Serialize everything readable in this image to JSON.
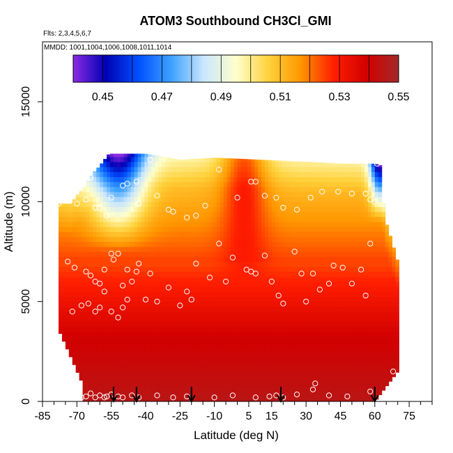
{
  "chart_data": {
    "type": "heatmap",
    "title": "ATOM3 Southbound CH3Cl_GMI",
    "flights_line": "Flts: 2,3,4,5,6,7",
    "mmdd_line": "MMDD: 1001,1004,1006,1008,1011,1014",
    "xlabel": "Latitude (deg N)",
    "ylabel": "Altitude (m)",
    "xlim": [
      -85,
      85
    ],
    "ylim": [
      0,
      18000
    ],
    "x_ticks": [
      -85,
      -70,
      -55,
      -40,
      -25,
      -10,
      5,
      15,
      30,
      45,
      60,
      75
    ],
    "x_minor_ticks": [
      -80,
      -75,
      -65,
      -60,
      -50,
      -45,
      -35,
      -30,
      -20,
      -15,
      -5,
      0,
      10,
      20,
      25,
      35,
      40,
      50,
      55,
      65,
      70,
      80,
      85
    ],
    "y_ticks": [
      0,
      5000,
      10000,
      15000
    ],
    "colorbar": {
      "min": 0.44,
      "max": 0.55,
      "ticks": [
        0.45,
        0.47,
        0.49,
        0.51,
        0.53,
        0.55
      ],
      "tick_labels": [
        "0.45",
        "0.47",
        "0.49",
        "0.51",
        "0.53",
        "0.55"
      ],
      "stops": [
        "#8a2be2",
        "#0000b4",
        "#0050ff",
        "#3ca0ff",
        "#c8e6ff",
        "#ffffcc",
        "#ffd23c",
        "#ff9600",
        "#ff1e00",
        "#d20000",
        "#a52828"
      ]
    },
    "curtain_top": [
      [
        -78,
        9900
      ],
      [
        -72,
        9900
      ],
      [
        -71,
        10200
      ],
      [
        -67,
        10700
      ],
      [
        -64,
        11300
      ],
      [
        -60,
        11800
      ],
      [
        -56,
        12400
      ],
      [
        -40,
        12400
      ],
      [
        -25,
        12100
      ],
      [
        -10,
        12200
      ],
      [
        10,
        12100
      ],
      [
        30,
        12000
      ],
      [
        45,
        11900
      ],
      [
        60,
        11900
      ],
      [
        63,
        11800
      ],
      [
        64,
        9300
      ],
      [
        67,
        8200
      ],
      [
        70,
        7000
      ]
    ],
    "curtain_bottom_left": -68,
    "curtain_bottom_right": 70,
    "observations": [
      [
        -68,
        200
      ],
      [
        -66,
        250
      ],
      [
        -64,
        400
      ],
      [
        -62,
        200
      ],
      [
        -60,
        300
      ],
      [
        -58,
        200
      ],
      [
        -57,
        250
      ],
      [
        -55,
        350
      ],
      [
        -52,
        250
      ],
      [
        -50,
        200
      ],
      [
        -46,
        300
      ],
      [
        -43,
        200
      ],
      [
        -35,
        300
      ],
      [
        -28,
        200
      ],
      [
        -22,
        250
      ],
      [
        -10,
        200
      ],
      [
        -2,
        300
      ],
      [
        8,
        200
      ],
      [
        14,
        250
      ],
      [
        17,
        300
      ],
      [
        20,
        200
      ],
      [
        26,
        350
      ],
      [
        33,
        600
      ],
      [
        34,
        900
      ],
      [
        40,
        300
      ],
      [
        48,
        250
      ],
      [
        58,
        500
      ],
      [
        -78,
        9900
      ],
      [
        -70,
        9900
      ],
      [
        -66,
        10100
      ],
      [
        -64,
        11200
      ],
      [
        -62,
        9700
      ],
      [
        -60,
        9700
      ],
      [
        -57,
        9300
      ],
      [
        -55,
        10200
      ],
      [
        -50,
        10800
      ],
      [
        -48,
        10900
      ],
      [
        -44,
        11000
      ],
      [
        -43,
        9900
      ],
      [
        -38,
        12100
      ],
      [
        -35,
        10300
      ],
      [
        -30,
        9600
      ],
      [
        -28,
        9500
      ],
      [
        -22,
        9200
      ],
      [
        -18,
        9300
      ],
      [
        -14,
        9800
      ],
      [
        -8,
        11600
      ],
      [
        0,
        10200
      ],
      [
        6,
        11000
      ],
      [
        8,
        11000
      ],
      [
        12,
        10300
      ],
      [
        17,
        10200
      ],
      [
        20,
        9700
      ],
      [
        26,
        9600
      ],
      [
        32,
        10200
      ],
      [
        37,
        10500
      ],
      [
        44,
        10500
      ],
      [
        50,
        10400
      ],
      [
        56,
        10400
      ],
      [
        58,
        10100
      ],
      [
        61,
        11900
      ],
      [
        60,
        10000
      ],
      [
        -74,
        7000
      ],
      [
        -71,
        6700
      ],
      [
        -66,
        6500
      ],
      [
        -64,
        6300
      ],
      [
        -62,
        6000
      ],
      [
        -60,
        5900
      ],
      [
        -58,
        6600
      ],
      [
        -55,
        7400
      ],
      [
        -54,
        7100
      ],
      [
        -52,
        7400
      ],
      [
        -50,
        5800
      ],
      [
        -48,
        6600
      ],
      [
        -46,
        6000
      ],
      [
        -44,
        6500
      ],
      [
        -43,
        6900
      ],
      [
        -40,
        5100
      ],
      [
        -38,
        6400
      ],
      [
        -35,
        5000
      ],
      [
        -30,
        5700
      ],
      [
        -25,
        4800
      ],
      [
        -22,
        5500
      ],
      [
        -20,
        5100
      ],
      [
        -18,
        6900
      ],
      [
        -12,
        6200
      ],
      [
        -8,
        7900
      ],
      [
        -5,
        6000
      ],
      [
        -2,
        7200
      ],
      [
        4,
        6600
      ],
      [
        6,
        6500
      ],
      [
        8,
        6400
      ],
      [
        12,
        7300
      ],
      [
        15,
        6000
      ],
      [
        18,
        5300
      ],
      [
        20,
        4900
      ],
      [
        25,
        7500
      ],
      [
        28,
        6400
      ],
      [
        30,
        5000
      ],
      [
        33,
        6400
      ],
      [
        36,
        5600
      ],
      [
        40,
        5900
      ],
      [
        42,
        6800
      ],
      [
        46,
        6700
      ],
      [
        50,
        5900
      ],
      [
        54,
        6600
      ],
      [
        56,
        5300
      ],
      [
        58,
        7900
      ],
      [
        68,
        1500
      ],
      [
        -72,
        4500
      ],
      [
        -68,
        4800
      ],
      [
        -65,
        4900
      ],
      [
        -62,
        4500
      ],
      [
        -60,
        4700
      ],
      [
        -58,
        5500
      ],
      [
        -55,
        4500
      ],
      [
        -52,
        4200
      ],
      [
        -50,
        4700
      ],
      [
        -48,
        5100
      ]
    ],
    "arrows": [
      -54,
      -44,
      -20,
      19,
      60
    ]
  }
}
